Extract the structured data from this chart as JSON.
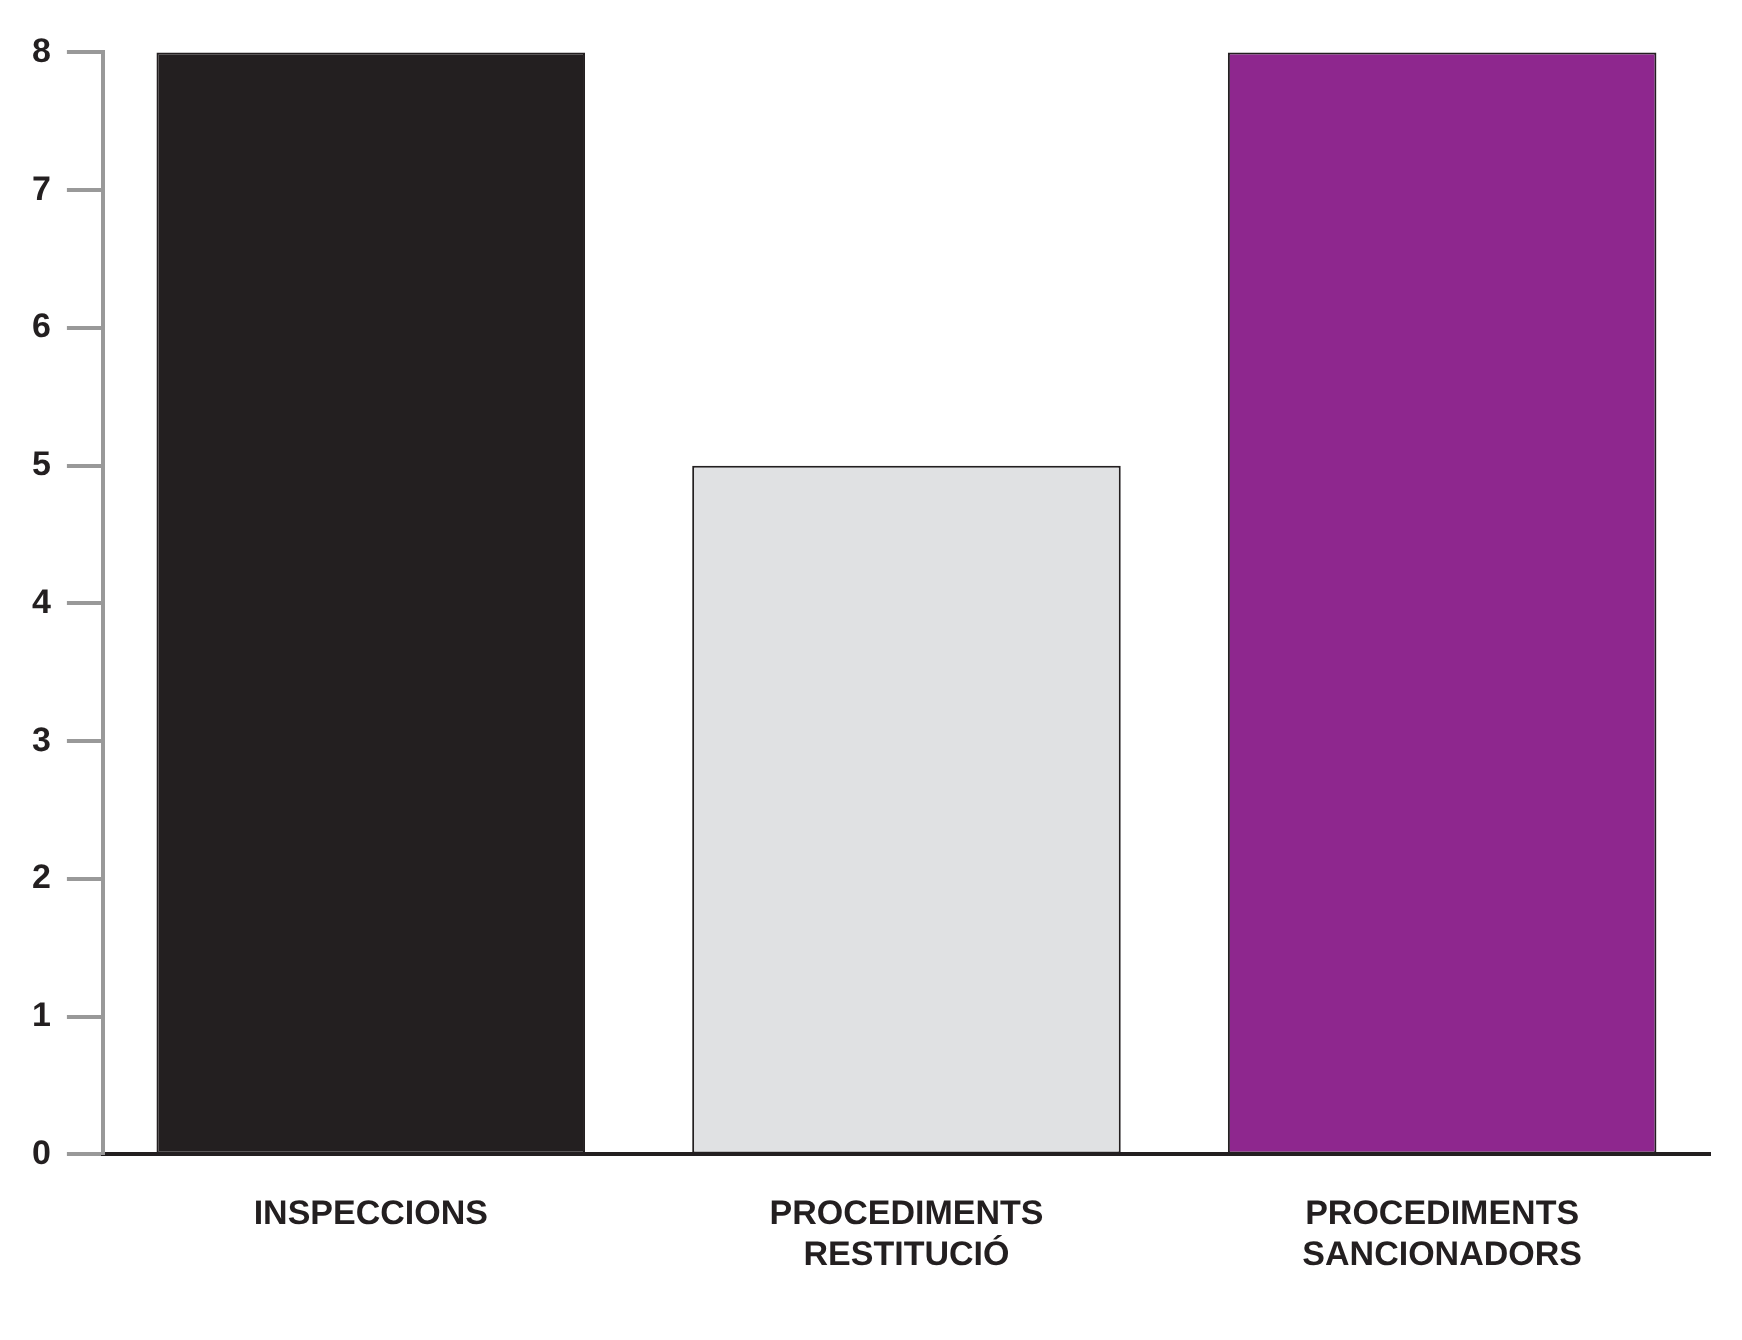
{
  "chart_data": {
    "type": "bar",
    "categories": [
      "INSPECCIONS",
      "PROCEDIMENTS RESTITUCIÓ",
      "PROCEDIMENTS SANCIONADORS"
    ],
    "values": [
      8,
      5,
      8
    ],
    "colors": [
      "#231f20",
      "#e0e1e3",
      "#8e278e"
    ],
    "ylim": [
      0,
      8
    ],
    "yticks": [
      0,
      1,
      2,
      3,
      4,
      5,
      6,
      7,
      8
    ],
    "grid": false,
    "legend": false
  }
}
